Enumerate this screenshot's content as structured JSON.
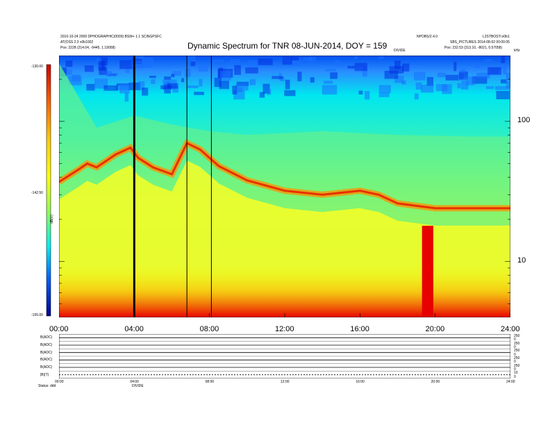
{
  "header": {
    "title": "Dynamic Spectrum for TNR 08-JUN-2014, DOY = 159",
    "left_line1": "2010-10-24 2009 DPHOGRAPHIC(0000) BSW+ 1.1 SCINGPSFC",
    "left_line2": "AT(OSS 2.3 x0b1002",
    "left_line3": "Pos:    2228 (214.04, -9445, 1.19058)",
    "right_top_left": "NPOBS/2.4.0",
    "right_top_right": "L2STBOSTi:x0b1",
    "right_line2": "SBS_PICTURES 2014-08-02 00:00:05",
    "right_line3": "Pos:    232.53 (313.10, -8021, 0.57058)",
    "right_marker": "DIVIDE",
    "right_unit": "kHz"
  },
  "colorbar": {
    "top_label": "-130.00",
    "mid_label": "-142.50",
    "bottom_label": "-155.00",
    "unit_label": "dB(V)",
    "colors": [
      "#e00000",
      "#ff4000",
      "#ff9900",
      "#ffff00",
      "#a0ff40",
      "#00e0e0",
      "#0080ff",
      "#0000a0"
    ]
  },
  "chart_data": {
    "type": "heatmap",
    "title": "Dynamic Spectrum for TNR 08-JUN-2014, DOY = 159",
    "x_ticks": [
      "00:00",
      "04:00",
      "08:00",
      "12:00",
      "16:00",
      "20:00",
      "24:00"
    ],
    "x_range_hours": [
      0,
      24
    ],
    "y_ticks": [
      "100",
      "10"
    ],
    "y_scale": "log",
    "y_range_khz": [
      4,
      295
    ],
    "colorbar_range": [
      -155.0,
      -130.0
    ],
    "vertical_lines_hours": [
      4.0,
      6.8,
      8.1
    ],
    "red_burst": {
      "start_hour": 19.3,
      "end_hour": 19.9,
      "top_khz": 18
    },
    "peak_ridge": [
      {
        "x": 0.0,
        "y": 37
      },
      {
        "x": 1.0,
        "y": 45
      },
      {
        "x": 1.5,
        "y": 50
      },
      {
        "x": 2.0,
        "y": 47
      },
      {
        "x": 3.0,
        "y": 58
      },
      {
        "x": 3.8,
        "y": 65
      },
      {
        "x": 4.2,
        "y": 55
      },
      {
        "x": 5.0,
        "y": 47
      },
      {
        "x": 6.0,
        "y": 42
      },
      {
        "x": 6.8,
        "y": 70
      },
      {
        "x": 7.5,
        "y": 63
      },
      {
        "x": 8.5,
        "y": 48
      },
      {
        "x": 10.0,
        "y": 38
      },
      {
        "x": 12.0,
        "y": 32
      },
      {
        "x": 14.0,
        "y": 30
      },
      {
        "x": 16.0,
        "y": 32
      },
      {
        "x": 17.0,
        "y": 30
      },
      {
        "x": 18.0,
        "y": 26
      },
      {
        "x": 20.0,
        "y": 24
      },
      {
        "x": 22.0,
        "y": 24
      },
      {
        "x": 24.0,
        "y": 24
      }
    ],
    "cyan_boundary": [
      {
        "x": 0.0,
        "y": 260
      },
      {
        "x": 2.0,
        "y": 90
      },
      {
        "x": 4.0,
        "y": 110
      },
      {
        "x": 6.0,
        "y": 95
      },
      {
        "x": 8.0,
        "y": 85
      },
      {
        "x": 10.0,
        "y": 80
      },
      {
        "x": 14.0,
        "y": 85
      },
      {
        "x": 18.0,
        "y": 80
      },
      {
        "x": 22.0,
        "y": 78
      },
      {
        "x": 24.0,
        "y": 78
      }
    ]
  },
  "bottom_panels": {
    "labels": [
      "B(ADC)",
      "B(ADC)",
      "B(ADC)",
      "B(ADC)",
      "B(ADC)",
      "|B|(T)"
    ],
    "right_ticks": [
      "250",
      "0",
      "250",
      "0",
      "250",
      "0",
      "250",
      "0",
      "250",
      "0",
      "10",
      "0"
    ],
    "x_ticks": [
      "00:00",
      "04:00",
      "08:00",
      "12:00",
      "16:00",
      "20:00",
      "24:00"
    ],
    "footer_left": "Status: ddd",
    "footer_mid": "DIVIDE"
  }
}
